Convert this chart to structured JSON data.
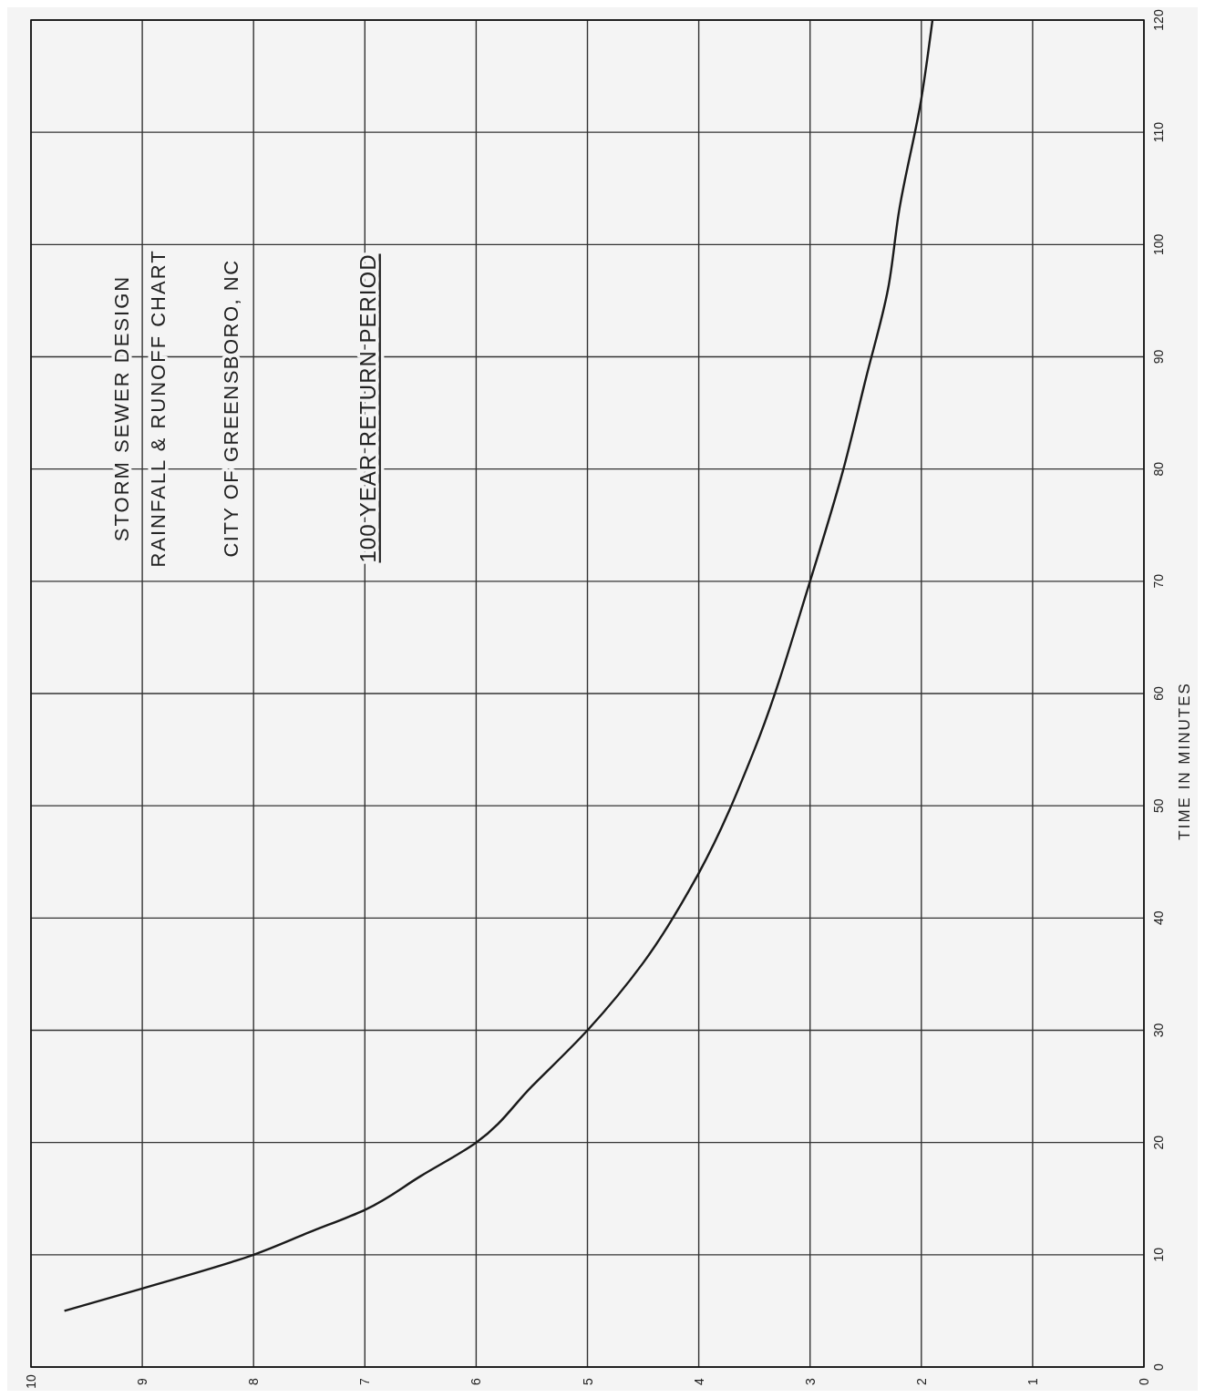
{
  "chart_data": {
    "type": "line",
    "title": "STORM SEWER DESIGN\nRAINFALL & RUNOFF CHART",
    "subtitle": "CITY OF GREENSBORO, NC",
    "annotations": [
      "100 YEAR RETURN PERIOD"
    ],
    "ylabel": "TIME IN MINUTES",
    "x": [
      9.7,
      9.0,
      8.0,
      7.5,
      7.0,
      6.5,
      6.0,
      5.5,
      5.0,
      4.5,
      4.0,
      3.5,
      3.0,
      2.7,
      2.5,
      2.3,
      2.2,
      2.0,
      1.9
    ],
    "series": [
      {
        "color": "#1a1a1a",
        "values": [
          5,
          7,
          10,
          12,
          14,
          17,
          20,
          25,
          30,
          36,
          44,
          55,
          70,
          80,
          88,
          96,
          103,
          113,
          120
        ]
      }
    ],
    "xlim": [
      10,
      0
    ],
    "xticks": [
      10,
      9,
      8,
      7,
      6,
      5,
      4,
      3,
      2,
      1,
      0
    ],
    "ylim": [
      0,
      120
    ],
    "yticks": [
      0,
      10,
      20,
      30,
      40,
      50,
      60,
      70,
      80,
      90,
      100,
      110,
      120
    ],
    "grid": true,
    "line_style": "solid",
    "marker": "none"
  }
}
